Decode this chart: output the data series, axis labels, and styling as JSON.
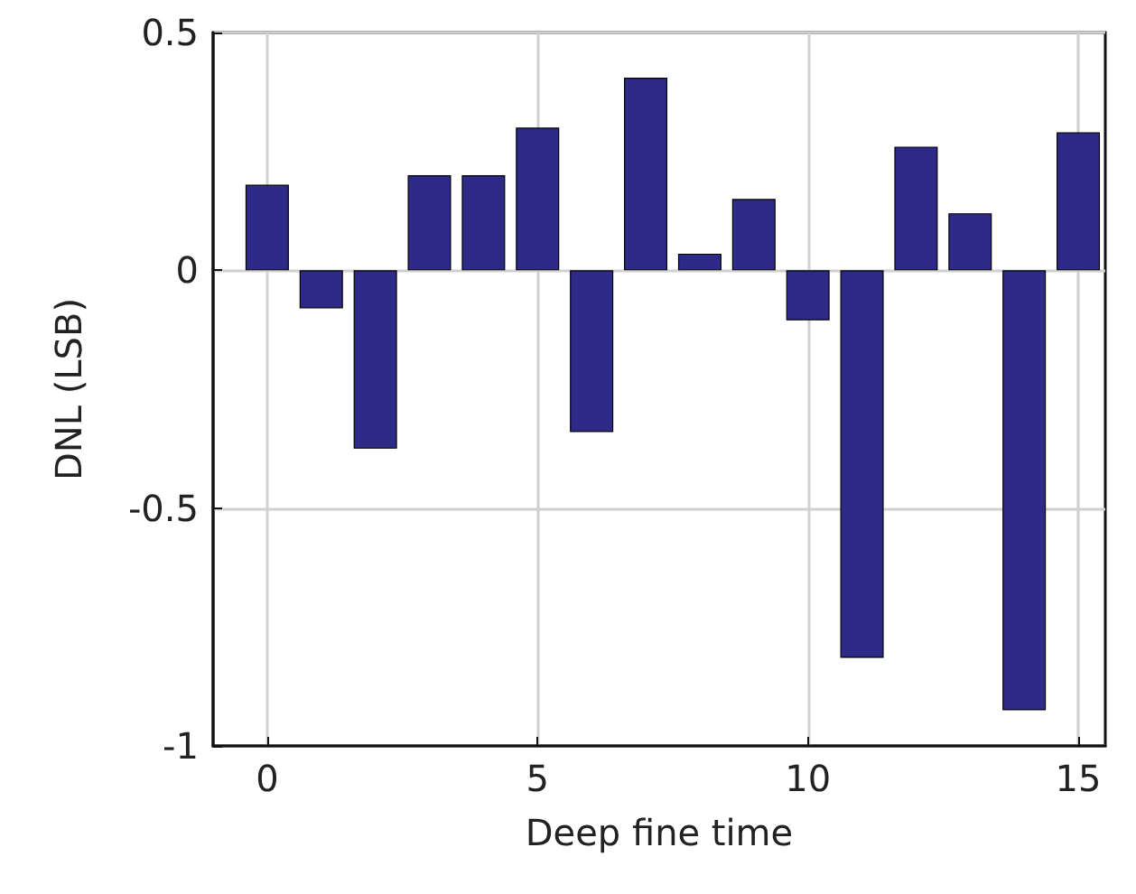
{
  "chart_data": {
    "type": "bar",
    "xlabel": "Deep fine time",
    "ylabel": "DNL (LSB)",
    "x": [
      0,
      1,
      2,
      3,
      4,
      5,
      6,
      7,
      8,
      9,
      10,
      11,
      12,
      13,
      14,
      15
    ],
    "values": [
      0.18,
      -0.08,
      -0.375,
      0.2,
      0.2,
      0.3,
      -0.34,
      0.405,
      0.035,
      0.15,
      -0.105,
      -0.815,
      0.26,
      0.12,
      -0.925,
      0.29
    ],
    "color": "#2e2a87",
    "xlim": [
      -1,
      15.5
    ],
    "xticks": [
      0,
      5,
      10,
      15
    ],
    "ylim": [
      -1,
      0.5
    ],
    "yticks": [
      -1,
      -0.5,
      0,
      0.5
    ],
    "grid": true
  }
}
